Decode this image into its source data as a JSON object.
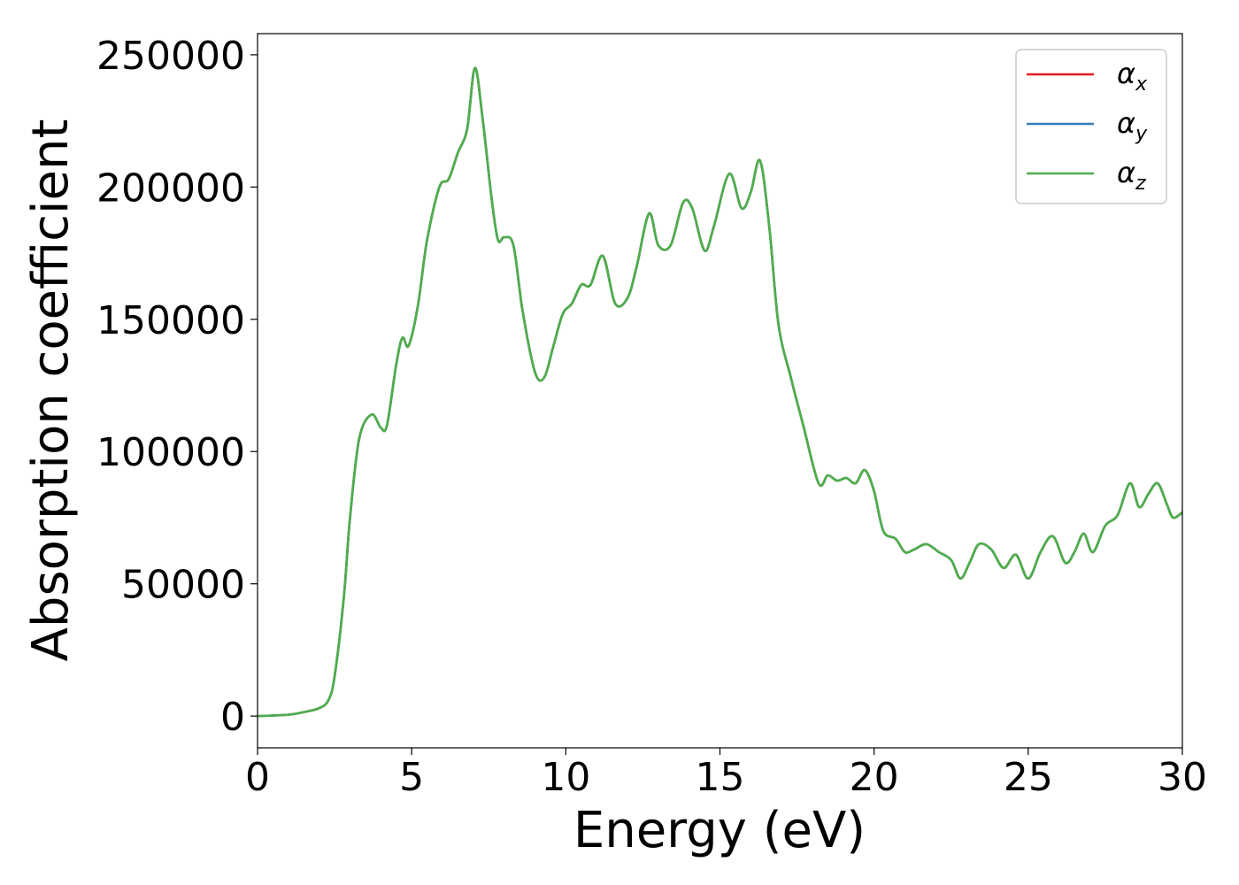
{
  "chart_data": {
    "type": "line",
    "xlabel": "Energy (eV)",
    "ylabel": "Absorption coefficient",
    "xlim": [
      0,
      30
    ],
    "ylim": [
      -12000,
      258000
    ],
    "xticks": [
      0,
      5,
      10,
      15,
      20,
      25,
      30
    ],
    "yticks": [
      0,
      50000,
      100000,
      150000,
      200000,
      250000
    ],
    "grid": false,
    "legend_position": "top-right",
    "x": [
      0,
      1,
      1.5,
      2,
      2.3,
      2.5,
      2.8,
      3.0,
      3.3,
      3.7,
      4.0,
      4.2,
      4.5,
      4.7,
      4.9,
      5.2,
      5.5,
      5.9,
      6.2,
      6.5,
      6.8,
      7.05,
      7.3,
      7.6,
      7.8,
      8.0,
      8.3,
      8.6,
      9.0,
      9.3,
      9.6,
      9.9,
      10.2,
      10.5,
      10.8,
      11.2,
      11.6,
      12.0,
      12.3,
      12.7,
      13.0,
      13.4,
      13.8,
      14.1,
      14.5,
      14.8,
      15.3,
      15.7,
      16.0,
      16.3,
      16.6,
      16.9,
      17.3,
      17.7,
      18.2,
      18.5,
      18.8,
      19.1,
      19.4,
      19.7,
      20.0,
      20.3,
      20.7,
      21.0,
      21.3,
      21.7,
      22.1,
      22.5,
      22.8,
      23.1,
      23.4,
      23.8,
      24.2,
      24.6,
      25.0,
      25.4,
      25.8,
      26.2,
      26.5,
      26.8,
      27.1,
      27.5,
      27.9,
      28.3,
      28.6,
      28.9,
      29.2,
      29.5,
      29.7,
      30.0
    ],
    "series": [
      {
        "name": "α_x",
        "color": "#e41a1c",
        "values": [
          0,
          500,
          1500,
          3000,
          6000,
          15000,
          45000,
          75000,
          105000,
          114000,
          109000,
          110000,
          133000,
          143000,
          140000,
          155000,
          180000,
          200000,
          203000,
          213000,
          222000,
          245000,
          226000,
          195000,
          180000,
          181000,
          178000,
          153000,
          130000,
          128000,
          140000,
          152000,
          156000,
          163000,
          163000,
          174000,
          156000,
          158000,
          170000,
          190000,
          178000,
          178000,
          194000,
          192000,
          176000,
          185000,
          205000,
          192000,
          198000,
          210000,
          185000,
          148000,
          128000,
          110000,
          88000,
          91000,
          89000,
          90000,
          88000,
          93000,
          85000,
          70000,
          67000,
          62000,
          63000,
          65000,
          62000,
          59000,
          52000,
          58000,
          65000,
          63000,
          56000,
          61000,
          52000,
          62000,
          68000,
          58000,
          62000,
          69000,
          62000,
          72000,
          76000,
          88000,
          79000,
          84000,
          88000,
          80000,
          75000,
          77000
        ]
      },
      {
        "name": "α_y",
        "color": "#377eb8",
        "values": [
          0,
          500,
          1500,
          3000,
          6000,
          15000,
          45000,
          75000,
          105000,
          114000,
          109000,
          110000,
          133000,
          143000,
          140000,
          155000,
          180000,
          200000,
          203000,
          213000,
          222000,
          245000,
          226000,
          195000,
          180000,
          181000,
          178000,
          153000,
          130000,
          128000,
          140000,
          152000,
          156000,
          163000,
          163000,
          174000,
          156000,
          158000,
          170000,
          190000,
          178000,
          178000,
          194000,
          192000,
          176000,
          185000,
          205000,
          192000,
          198000,
          210000,
          185000,
          148000,
          128000,
          110000,
          88000,
          91000,
          89000,
          90000,
          88000,
          93000,
          85000,
          70000,
          67000,
          62000,
          63000,
          65000,
          62000,
          59000,
          52000,
          58000,
          65000,
          63000,
          56000,
          61000,
          52000,
          62000,
          68000,
          58000,
          62000,
          69000,
          62000,
          72000,
          76000,
          88000,
          79000,
          84000,
          88000,
          80000,
          75000,
          77000
        ]
      },
      {
        "name": "α_z",
        "color": "#4daf4a",
        "values": [
          0,
          500,
          1500,
          3000,
          6000,
          15000,
          45000,
          75000,
          105000,
          114000,
          109000,
          110000,
          133000,
          143000,
          140000,
          155000,
          180000,
          200000,
          203000,
          213000,
          222000,
          245000,
          226000,
          195000,
          180000,
          181000,
          178000,
          153000,
          130000,
          128000,
          140000,
          152000,
          156000,
          163000,
          163000,
          174000,
          156000,
          158000,
          170000,
          190000,
          178000,
          178000,
          194000,
          192000,
          176000,
          185000,
          205000,
          192000,
          198000,
          210000,
          185000,
          148000,
          128000,
          110000,
          88000,
          91000,
          89000,
          90000,
          88000,
          93000,
          85000,
          70000,
          67000,
          62000,
          63000,
          65000,
          62000,
          59000,
          52000,
          58000,
          65000,
          63000,
          56000,
          61000,
          52000,
          62000,
          68000,
          58000,
          62000,
          69000,
          62000,
          72000,
          76000,
          88000,
          79000,
          84000,
          88000,
          80000,
          75000,
          77000
        ]
      }
    ],
    "legend": [
      {
        "symbol": "α",
        "subscript": "x",
        "color": "#e41a1c"
      },
      {
        "symbol": "α",
        "subscript": "y",
        "color": "#377eb8"
      },
      {
        "symbol": "α",
        "subscript": "z",
        "color": "#4daf4a"
      }
    ]
  }
}
